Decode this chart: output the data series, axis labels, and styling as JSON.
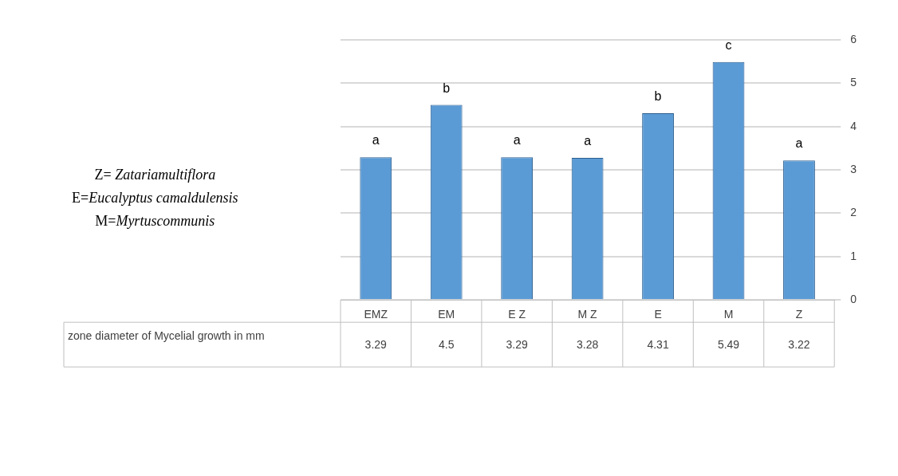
{
  "chart_data": {
    "type": "bar",
    "categories": [
      "EMZ",
      "EM",
      "E Z",
      "M Z",
      "E",
      "M",
      "Z"
    ],
    "series": [
      {
        "name": "zone diameter of Mycelial growth in mm",
        "color": "#5b9bd5",
        "values": [
          3.29,
          4.5,
          3.29,
          3.28,
          4.31,
          5.49,
          3.22
        ]
      }
    ],
    "ylim": [
      0,
      6
    ],
    "yticks": [
      0,
      1,
      2,
      3,
      4,
      5,
      6
    ],
    "grid": "y",
    "data_labels": true,
    "legend": false,
    "annotations": [
      {
        "text": "a",
        "x": "EMZ",
        "y": 3.29
      },
      {
        "text": "b",
        "x": "EM",
        "y": 4.5
      },
      {
        "text": "a",
        "x": "E Z",
        "y": 3.29
      },
      {
        "text": "a",
        "x": "M Z",
        "y": 3.28
      },
      {
        "text": "b",
        "x": "E",
        "y": 4.31
      },
      {
        "text": "c",
        "x": "M",
        "y": 5.49
      },
      {
        "text": "a",
        "x": "Z",
        "y": 3.22
      },
      "Z= Zatariamultiflora",
      "E=Eucalyptus camaldulensis",
      "M=Myrtuscommunis"
    ]
  }
}
